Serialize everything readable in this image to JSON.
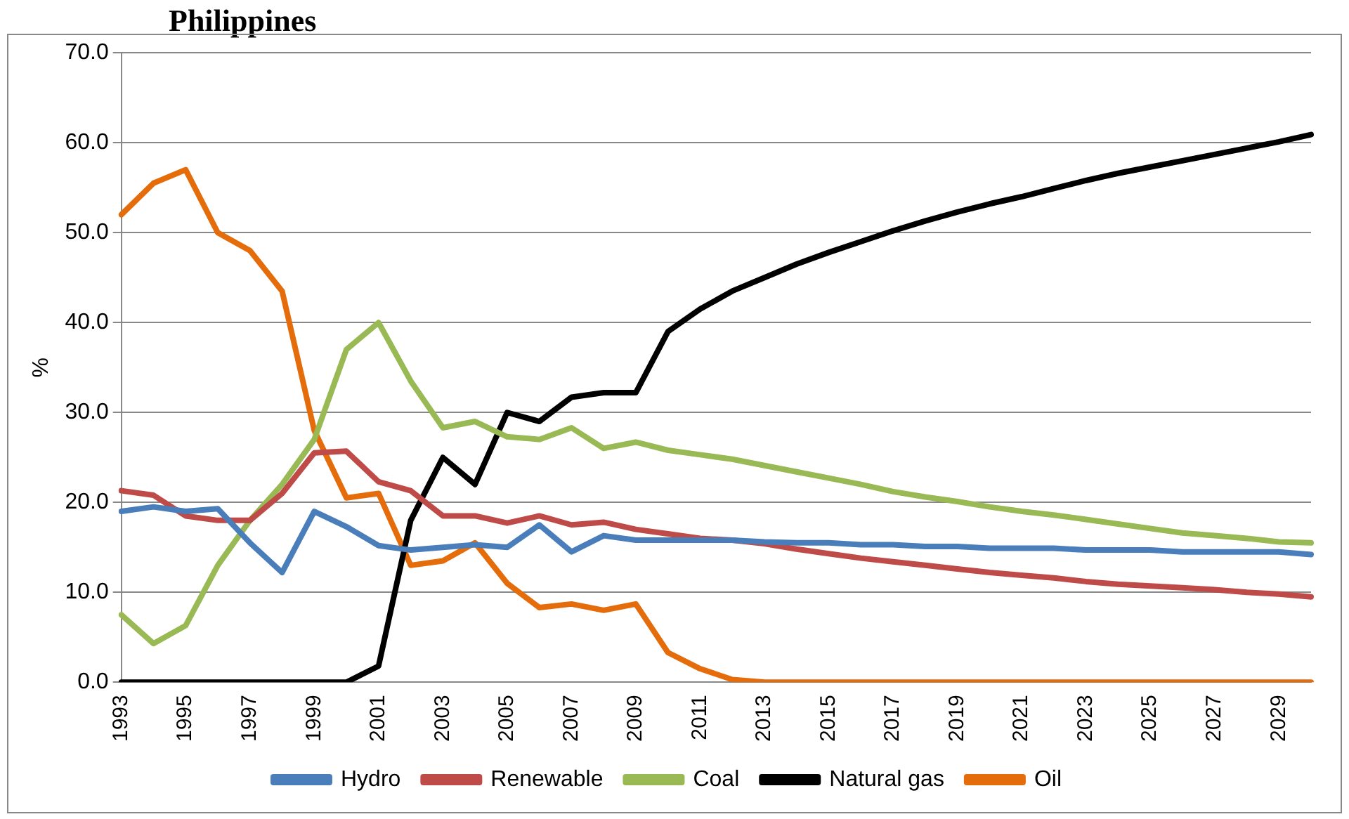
{
  "chart_data": {
    "type": "line",
    "title": "Philippines",
    "ylabel": "%",
    "categories": [
      "1993",
      null,
      "1995",
      null,
      "1997",
      null,
      "1999",
      null,
      "2001",
      null,
      "2003",
      null,
      "2005",
      null,
      "2007",
      null,
      "2009",
      null,
      "2011",
      null,
      "2013",
      null,
      "2015",
      null,
      "2017",
      null,
      "2019",
      null,
      "2021",
      null,
      "2023",
      null,
      "2025",
      null,
      "2027",
      null,
      "2029",
      null
    ],
    "series": [
      {
        "name": "Hydro",
        "color": "#4a7ebb",
        "values": [
          19,
          19.5,
          19,
          19.3,
          15.5,
          12.2,
          19,
          17.3,
          15.2,
          14.7,
          15,
          15.3,
          15,
          17.5,
          14.5,
          16.3,
          15.8,
          15.8,
          15.8,
          15.8,
          15.6,
          15.5,
          15.5,
          15.3,
          15.3,
          15.1,
          15.1,
          14.9,
          14.9,
          14.9,
          14.7,
          14.7,
          14.7,
          14.5,
          14.5,
          14.5,
          14.5,
          14.2
        ]
      },
      {
        "name": "Renewable",
        "color": "#be4b48",
        "values": [
          21.3,
          20.8,
          18.5,
          18,
          18,
          21,
          25.5,
          25.7,
          22.3,
          21.3,
          18.5,
          18.5,
          17.7,
          18.5,
          17.5,
          17.8,
          17,
          16.5,
          16,
          15.8,
          15.4,
          14.8,
          14.3,
          13.8,
          13.4,
          13,
          12.6,
          12.2,
          11.9,
          11.6,
          11.2,
          10.9,
          10.7,
          10.5,
          10.3,
          10,
          9.8,
          9.5
        ]
      },
      {
        "name": "Coal",
        "color": "#98b954",
        "values": [
          7.5,
          4.3,
          6.3,
          13,
          18,
          22,
          27,
          37,
          40,
          33.5,
          28.3,
          29,
          27.3,
          27,
          28.3,
          26,
          26.7,
          25.8,
          25.3,
          24.8,
          24.1,
          23.4,
          22.7,
          22,
          21.2,
          20.6,
          20.1,
          19.5,
          19,
          18.6,
          18.1,
          17.6,
          17.1,
          16.6,
          16.3,
          16,
          15.6,
          15.5
        ]
      },
      {
        "name": "Natural gas",
        "color": "#000000",
        "values": [
          0,
          0,
          0,
          0,
          0,
          0,
          0,
          0,
          1.8,
          18,
          25,
          22,
          30,
          29,
          31.7,
          32.2,
          32.2,
          39,
          41.5,
          43.5,
          45,
          46.5,
          47.8,
          49,
          50.2,
          51.3,
          52.3,
          53.2,
          54,
          54.9,
          55.8,
          56.6,
          57.3,
          58,
          58.7,
          59.4,
          60.1,
          60.9
        ]
      },
      {
        "name": "Oil",
        "color": "#e46c0a",
        "values": [
          52,
          55.5,
          57,
          50,
          48,
          43.5,
          28,
          20.5,
          21,
          13,
          13.5,
          15.5,
          11,
          8.3,
          8.7,
          8,
          8.7,
          3.3,
          1.5,
          0.3,
          0,
          0,
          0,
          0,
          0,
          0,
          0,
          0,
          0,
          0,
          0,
          0,
          0,
          0,
          0,
          0,
          0,
          0
        ]
      }
    ],
    "ylim": [
      0,
      70
    ],
    "yticks": [
      {
        "value": 0,
        "label": "0.0"
      },
      {
        "value": 10,
        "label": "10.0"
      },
      {
        "value": 20,
        "label": "20.0"
      },
      {
        "value": 30,
        "label": "30.0"
      },
      {
        "value": 40,
        "label": "40.0"
      },
      {
        "value": 50,
        "label": "50.0"
      },
      {
        "value": 60,
        "label": "60.0"
      },
      {
        "value": 70,
        "label": "70.0"
      }
    ],
    "grid": "y",
    "legend": "bottom",
    "marker": "none",
    "line_style": "solid"
  }
}
